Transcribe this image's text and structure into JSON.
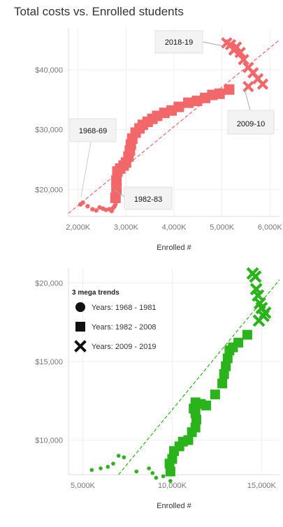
{
  "page": {
    "title": "Total costs vs. Enrolled students"
  },
  "chart_data": [
    {
      "type": "scatter",
      "xlabel": "Enrolled #",
      "ylabel": "",
      "xlim": [
        1800000,
        6200000
      ],
      "ylim": [
        15500000,
        47000000
      ],
      "x_ticks": [
        {
          "value": 2000000,
          "label": "2,000K"
        },
        {
          "value": 3000000,
          "label": "3,000K"
        },
        {
          "value": 4000000,
          "label": "4,000K"
        },
        {
          "value": 5000000,
          "label": "5,000K"
        },
        {
          "value": 6000000,
          "label": "6,000K"
        }
      ],
      "y_ticks": [
        {
          "value": 20000000,
          "label": "$20,000"
        },
        {
          "value": 30000000,
          "label": "$30,000"
        },
        {
          "value": 40000000,
          "label": "$40,000"
        }
      ],
      "color": "#f2676a",
      "grid": true,
      "trendline": {
        "style": "dashed",
        "x": [
          1800000,
          6200000
        ],
        "y": [
          16000000,
          45000000
        ]
      },
      "series": [
        {
          "shape": "circle",
          "points": [
            [
              2050000,
              17500000
            ],
            [
              2100000,
              17800000
            ],
            [
              2200000,
              17200000
            ],
            [
              2300000,
              16700000
            ],
            [
              2380000,
              16500000
            ],
            [
              2450000,
              17000000
            ],
            [
              2520000,
              16800000
            ],
            [
              2580000,
              16600000
            ],
            [
              2650000,
              16700000
            ],
            [
              2700000,
              16400000
            ],
            [
              2730000,
              16900000
            ],
            [
              2760000,
              17200000
            ],
            [
              2780000,
              17500000
            ]
          ]
        },
        {
          "shape": "square",
          "points": [
            [
              2780000,
              18600000
            ],
            [
              2800000,
              20000000
            ],
            [
              2800000,
              21500000
            ],
            [
              2820000,
              23000000
            ],
            [
              2880000,
              23500000
            ],
            [
              2950000,
              24000000
            ],
            [
              3000000,
              24500000
            ],
            [
              3050000,
              25500000
            ],
            [
              3080000,
              26500000
            ],
            [
              3100000,
              27500000
            ],
            [
              3130000,
              28500000
            ],
            [
              3200000,
              29500000
            ],
            [
              3280000,
              30200000
            ],
            [
              3350000,
              30800000
            ],
            [
              3450000,
              31300000
            ],
            [
              3550000,
              31800000
            ],
            [
              3650000,
              32300000
            ],
            [
              3800000,
              32800000
            ],
            [
              3950000,
              33200000
            ],
            [
              4100000,
              33800000
            ],
            [
              4300000,
              34500000
            ],
            [
              4480000,
              34800000
            ],
            [
              4650000,
              35300000
            ],
            [
              4800000,
              35800000
            ],
            [
              4950000,
              36000000
            ],
            [
              5150000,
              36700000
            ]
          ]
        },
        {
          "shape": "cross",
          "points": [
            [
              5100000,
              44500000
            ],
            [
              5180000,
              44200000
            ],
            [
              5250000,
              43300000
            ],
            [
              5300000,
              43800000
            ],
            [
              5380000,
              42900000
            ],
            [
              5450000,
              41700000
            ],
            [
              5550000,
              40400000
            ],
            [
              5650000,
              39500000
            ],
            [
              5750000,
              38500000
            ],
            [
              5850000,
              37600000
            ],
            [
              5550000,
              37200000
            ]
          ]
        }
      ],
      "annotations": [
        {
          "label": "2018-19"
        },
        {
          "label": "2009-10"
        },
        {
          "label": "1968-69"
        },
        {
          "label": "1982-83"
        }
      ]
    },
    {
      "type": "scatter",
      "xlabel": "Enrolled #",
      "ylabel": "",
      "xlim": [
        4200000,
        16000000
      ],
      "ylim": [
        7800000,
        20900000
      ],
      "x_ticks": [
        {
          "value": 5000000,
          "label": "5,000K"
        },
        {
          "value": 10000000,
          "label": "10,000K"
        },
        {
          "value": 15000000,
          "label": "15,000K"
        }
      ],
      "y_ticks": [
        {
          "value": 10000000,
          "label": "$10,000"
        },
        {
          "value": 15000000,
          "label": "$15,000"
        },
        {
          "value": 20000000,
          "label": "$20,000"
        }
      ],
      "color": "#2ab31b",
      "grid": true,
      "trendline": {
        "style": "dashed",
        "x": [
          7000000,
          16000000
        ],
        "y": [
          7000000,
          20200000
        ]
      },
      "legend": {
        "title": "3 mega trends",
        "position": "top-left",
        "items": [
          {
            "shape": "circle",
            "label": "Years: 1968 - 1981"
          },
          {
            "shape": "square",
            "label": "Years: 1982 - 2008"
          },
          {
            "shape": "cross",
            "label": "Years: 2009 - 2019"
          }
        ]
      },
      "series": [
        {
          "shape": "circle",
          "points": [
            [
              5500000,
              8100000
            ],
            [
              6000000,
              8200000
            ],
            [
              6400000,
              8300000
            ],
            [
              6700000,
              8500000
            ],
            [
              7000000,
              9000000
            ],
            [
              7300000,
              8900000
            ],
            [
              8000000,
              8000000
            ],
            [
              8700000,
              8200000
            ],
            [
              8900000,
              7900000
            ],
            [
              9100000,
              7600000
            ],
            [
              9500000,
              7700000
            ],
            [
              9900000,
              7400000
            ]
          ]
        },
        {
          "shape": "square",
          "points": [
            [
              9900000,
              8000000
            ],
            [
              9850000,
              8500000
            ],
            [
              10000000,
              8800000
            ],
            [
              10100000,
              9300000
            ],
            [
              10400000,
              9600000
            ],
            [
              10600000,
              9900000
            ],
            [
              10900000,
              10000000
            ],
            [
              11100000,
              10500000
            ],
            [
              11300000,
              10800000
            ],
            [
              11350000,
              11300000
            ],
            [
              11300000,
              11700000
            ],
            [
              11200000,
              12000000
            ],
            [
              11300000,
              12400000
            ],
            [
              11600000,
              12300000
            ],
            [
              11900000,
              12200000
            ],
            [
              12400000,
              12900000
            ],
            [
              12800000,
              13600000
            ],
            [
              12900000,
              14200000
            ],
            [
              13000000,
              14700000
            ],
            [
              13100000,
              15200000
            ],
            [
              13200000,
              15700000
            ],
            [
              13400000,
              15900000
            ],
            [
              13700000,
              16200000
            ],
            [
              14200000,
              16700000
            ]
          ]
        },
        {
          "shape": "cross",
          "points": [
            [
              14500000,
              20600000
            ],
            [
              14650000,
              20400000
            ],
            [
              14700000,
              19600000
            ],
            [
              14800000,
              19200000
            ],
            [
              14900000,
              18700000
            ],
            [
              15000000,
              18400000
            ],
            [
              15100000,
              17900000
            ],
            [
              15200000,
              18100000
            ],
            [
              14850000,
              17600000
            ]
          ]
        }
      ]
    }
  ]
}
